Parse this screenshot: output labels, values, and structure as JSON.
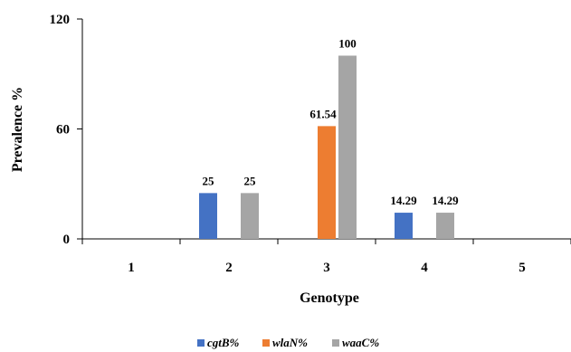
{
  "chart_data": {
    "type": "bar",
    "title": "",
    "xlabel": "Genotype",
    "ylabel": "Prevalence %",
    "categories": [
      "1",
      "2",
      "3",
      "4",
      "5"
    ],
    "ylim": [
      0,
      120
    ],
    "yticks": [
      "0",
      "60",
      "120"
    ],
    "grid": false,
    "legend_position": "bottom",
    "series": [
      {
        "name": "cgtB%",
        "color": "#4472C4",
        "values": [
          0,
          25,
          0,
          14.29,
          0
        ],
        "labels": [
          "",
          "25",
          "",
          "14.29",
          ""
        ]
      },
      {
        "name": "wlaN%",
        "color": "#ED7D31",
        "values": [
          0,
          0,
          61.54,
          0,
          0
        ],
        "labels": [
          "",
          "",
          "61.54",
          "",
          ""
        ]
      },
      {
        "name": "waaC%",
        "color": "#A5A5A5",
        "values": [
          0,
          25,
          100,
          14.29,
          0
        ],
        "labels": [
          "",
          "25",
          "100",
          "14.29",
          ""
        ]
      }
    ]
  }
}
